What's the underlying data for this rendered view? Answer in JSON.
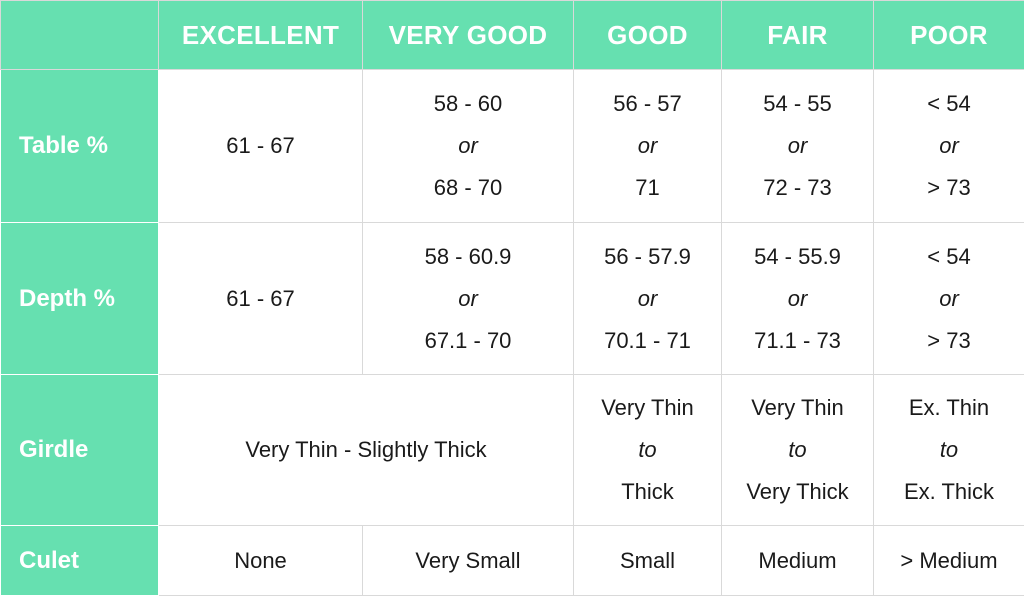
{
  "header": {
    "excellent": "EXCELLENT",
    "very_good": "VERY GOOD",
    "good": "GOOD",
    "fair": "FAIR",
    "poor": "POOR"
  },
  "rows": {
    "table": {
      "label": "Table %",
      "excellent": "61 - 67",
      "very_good": [
        "58 - 60",
        "or",
        "68 - 70"
      ],
      "good": [
        "56 - 57",
        "or",
        "71"
      ],
      "fair": [
        "54 - 55",
        "or",
        "72 - 73"
      ],
      "poor": [
        "< 54",
        "or",
        "> 73"
      ]
    },
    "depth": {
      "label": "Depth %",
      "excellent": "61 - 67",
      "very_good": [
        "58 - 60.9",
        "or",
        "67.1 - 70"
      ],
      "good": [
        "56 - 57.9",
        "or",
        "70.1 - 71"
      ],
      "fair": [
        "54 - 55.9",
        "or",
        "71.1 - 73"
      ],
      "poor": [
        "< 54",
        "or",
        "> 73"
      ]
    },
    "girdle": {
      "label": "Girdle",
      "excellent_very_good": "Very Thin - Slightly Thick",
      "good": [
        "Very Thin",
        "to",
        "Thick"
      ],
      "fair": [
        "Very Thin",
        "to",
        "Very Thick"
      ],
      "poor": [
        "Ex. Thin",
        "to",
        "Ex. Thick"
      ]
    },
    "culet": {
      "label": "Culet",
      "excellent": "None",
      "very_good": "Very Small",
      "good": "Small",
      "fair": "Medium",
      "poor": "> Medium"
    }
  },
  "colors": {
    "header_bg": "#66e0b0",
    "header_text": "#ffffff",
    "cell_text": "#1a1a1a",
    "grid_line": "#d9d9d9"
  }
}
